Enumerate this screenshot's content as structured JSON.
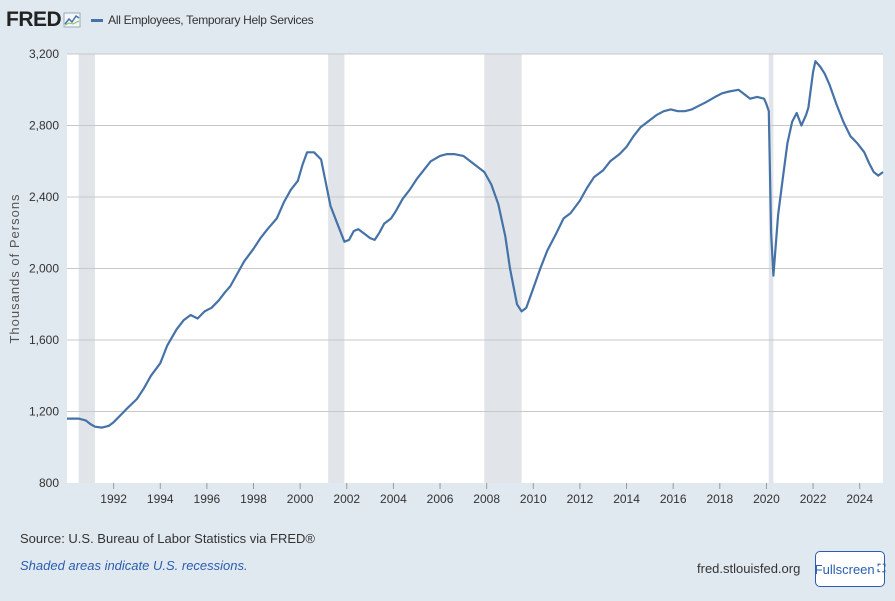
{
  "header": {
    "logo": "FRED",
    "logo_icon": "chart-graph-icon",
    "series_label": "All Employees, Temporary Help Services"
  },
  "footer": {
    "source": "Source: U.S. Bureau of Labor Statistics via FRED®",
    "recession_note": "Shaded areas indicate U.S. recessions.",
    "site": "fred.stlouisfed.org",
    "fullscreen_label": "Fullscreen",
    "fullscreen_icon": "expand-icon"
  },
  "colors": {
    "line": "#4572a7",
    "background": "#e1e9f0",
    "plot_background": "#ffffff",
    "recession": "#e1e5ea",
    "grid": "#c8c8c8"
  },
  "chart_data": {
    "type": "line",
    "ylabel": "Thousands of Persons",
    "xlim": [
      1990.0,
      2025.0
    ],
    "ylim": [
      800,
      3200
    ],
    "y_ticks": [
      800,
      1200,
      1600,
      2000,
      2400,
      2800,
      3200
    ],
    "y_tick_labels": [
      "800",
      "1,200",
      "1,600",
      "2,000",
      "2,400",
      "2,800",
      "3,200"
    ],
    "x_ticks": [
      1992,
      1994,
      1996,
      1998,
      2000,
      2002,
      2004,
      2006,
      2008,
      2010,
      2012,
      2014,
      2016,
      2018,
      2020,
      2022,
      2024
    ],
    "x_tick_labels": [
      "1992",
      "1994",
      "1996",
      "1998",
      "2000",
      "2002",
      "2004",
      "2006",
      "2008",
      "2010",
      "2012",
      "2014",
      "2016",
      "2018",
      "2020",
      "2022",
      "2024"
    ],
    "grid": true,
    "recessions": [
      [
        1990.5,
        1991.2
      ],
      [
        2001.2,
        2001.9
      ],
      [
        2007.9,
        2009.5
      ],
      [
        2020.1,
        2020.3
      ]
    ],
    "series": [
      {
        "name": "All Employees, Temporary Help Services",
        "x": [
          1990.0,
          1990.5,
          1990.8,
          1991.0,
          1991.2,
          1991.5,
          1991.8,
          1992.0,
          1992.3,
          1992.6,
          1993.0,
          1993.3,
          1993.6,
          1994.0,
          1994.3,
          1994.7,
          1995.0,
          1995.3,
          1995.6,
          1995.9,
          1996.2,
          1996.5,
          1996.8,
          1997.0,
          1997.3,
          1997.6,
          1998.0,
          1998.3,
          1998.6,
          1999.0,
          1999.3,
          1999.6,
          1999.9,
          2000.1,
          2000.3,
          2000.6,
          2000.9,
          2001.1,
          2001.3,
          2001.6,
          2001.9,
          2002.1,
          2002.3,
          2002.5,
          2002.8,
          2003.0,
          2003.2,
          2003.4,
          2003.6,
          2003.9,
          2004.1,
          2004.4,
          2004.7,
          2005.0,
          2005.3,
          2005.6,
          2006.0,
          2006.3,
          2006.6,
          2007.0,
          2007.3,
          2007.6,
          2007.9,
          2008.2,
          2008.5,
          2008.8,
          2009.0,
          2009.3,
          2009.5,
          2009.7,
          2010.0,
          2010.3,
          2010.6,
          2011.0,
          2011.3,
          2011.6,
          2012.0,
          2012.3,
          2012.6,
          2013.0,
          2013.3,
          2013.7,
          2014.0,
          2014.3,
          2014.6,
          2015.0,
          2015.3,
          2015.6,
          2015.9,
          2016.2,
          2016.5,
          2016.8,
          2017.1,
          2017.4,
          2017.8,
          2018.1,
          2018.4,
          2018.8,
          2019.0,
          2019.3,
          2019.6,
          2019.9,
          2020.0,
          2020.1,
          2020.2,
          2020.3,
          2020.5,
          2020.7,
          2020.9,
          2021.1,
          2021.3,
          2021.5,
          2021.7,
          2021.8,
          2021.9,
          2022.0,
          2022.1,
          2022.3,
          2022.5,
          2022.7,
          2023.0,
          2023.3,
          2023.6,
          2023.9,
          2024.2,
          2024.4,
          2024.6,
          2024.8,
          2025.0
        ],
        "values": [
          1160,
          1160,
          1150,
          1130,
          1115,
          1110,
          1120,
          1140,
          1180,
          1220,
          1270,
          1330,
          1400,
          1470,
          1570,
          1660,
          1710,
          1740,
          1720,
          1760,
          1780,
          1820,
          1870,
          1900,
          1970,
          2040,
          2110,
          2170,
          2220,
          2280,
          2370,
          2440,
          2490,
          2580,
          2650,
          2650,
          2610,
          2480,
          2350,
          2250,
          2150,
          2160,
          2210,
          2220,
          2190,
          2170,
          2160,
          2200,
          2250,
          2280,
          2320,
          2390,
          2440,
          2500,
          2550,
          2600,
          2630,
          2640,
          2640,
          2630,
          2600,
          2570,
          2540,
          2470,
          2360,
          2180,
          2000,
          1800,
          1760,
          1780,
          1890,
          2000,
          2100,
          2200,
          2280,
          2310,
          2380,
          2450,
          2510,
          2550,
          2600,
          2640,
          2680,
          2740,
          2790,
          2830,
          2860,
          2880,
          2890,
          2880,
          2880,
          2890,
          2910,
          2930,
          2960,
          2980,
          2990,
          3000,
          2980,
          2950,
          2960,
          2950,
          2920,
          2880,
          2200,
          1960,
          2300,
          2500,
          2700,
          2820,
          2870,
          2800,
          2860,
          2900,
          3000,
          3100,
          3160,
          3130,
          3090,
          3030,
          2920,
          2820,
          2740,
          2700,
          2650,
          2590,
          2540,
          2520,
          2540
        ]
      }
    ]
  }
}
